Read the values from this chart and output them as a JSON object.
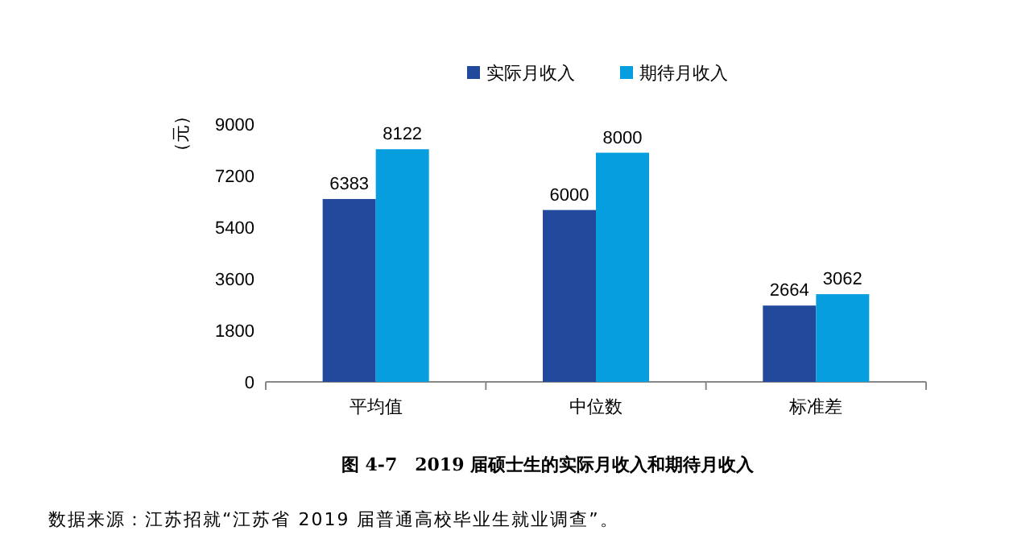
{
  "chart_data": {
    "type": "bar",
    "title": "图 4-7　2019 届硕士生的实际月收入和期待月收入",
    "ylabel": "（元）",
    "categories": [
      "平均值",
      "中位数",
      "标准差"
    ],
    "series": [
      {
        "name": "实际月收入",
        "color": "#22499c",
        "values": [
          6383,
          6000,
          2664
        ]
      },
      {
        "name": "期待月收入",
        "color": "#079ee0",
        "values": [
          8122,
          8000,
          3062
        ]
      }
    ],
    "ylim": [
      0,
      9000
    ],
    "yticks": [
      0,
      1800,
      3600,
      5400,
      7200,
      9000
    ],
    "data_labels": true,
    "legend": "top",
    "grid": false,
    "annotations": [
      "数据来源：江苏招就“江苏省 2019 届普通高校毕业生就业调查”。"
    ]
  }
}
